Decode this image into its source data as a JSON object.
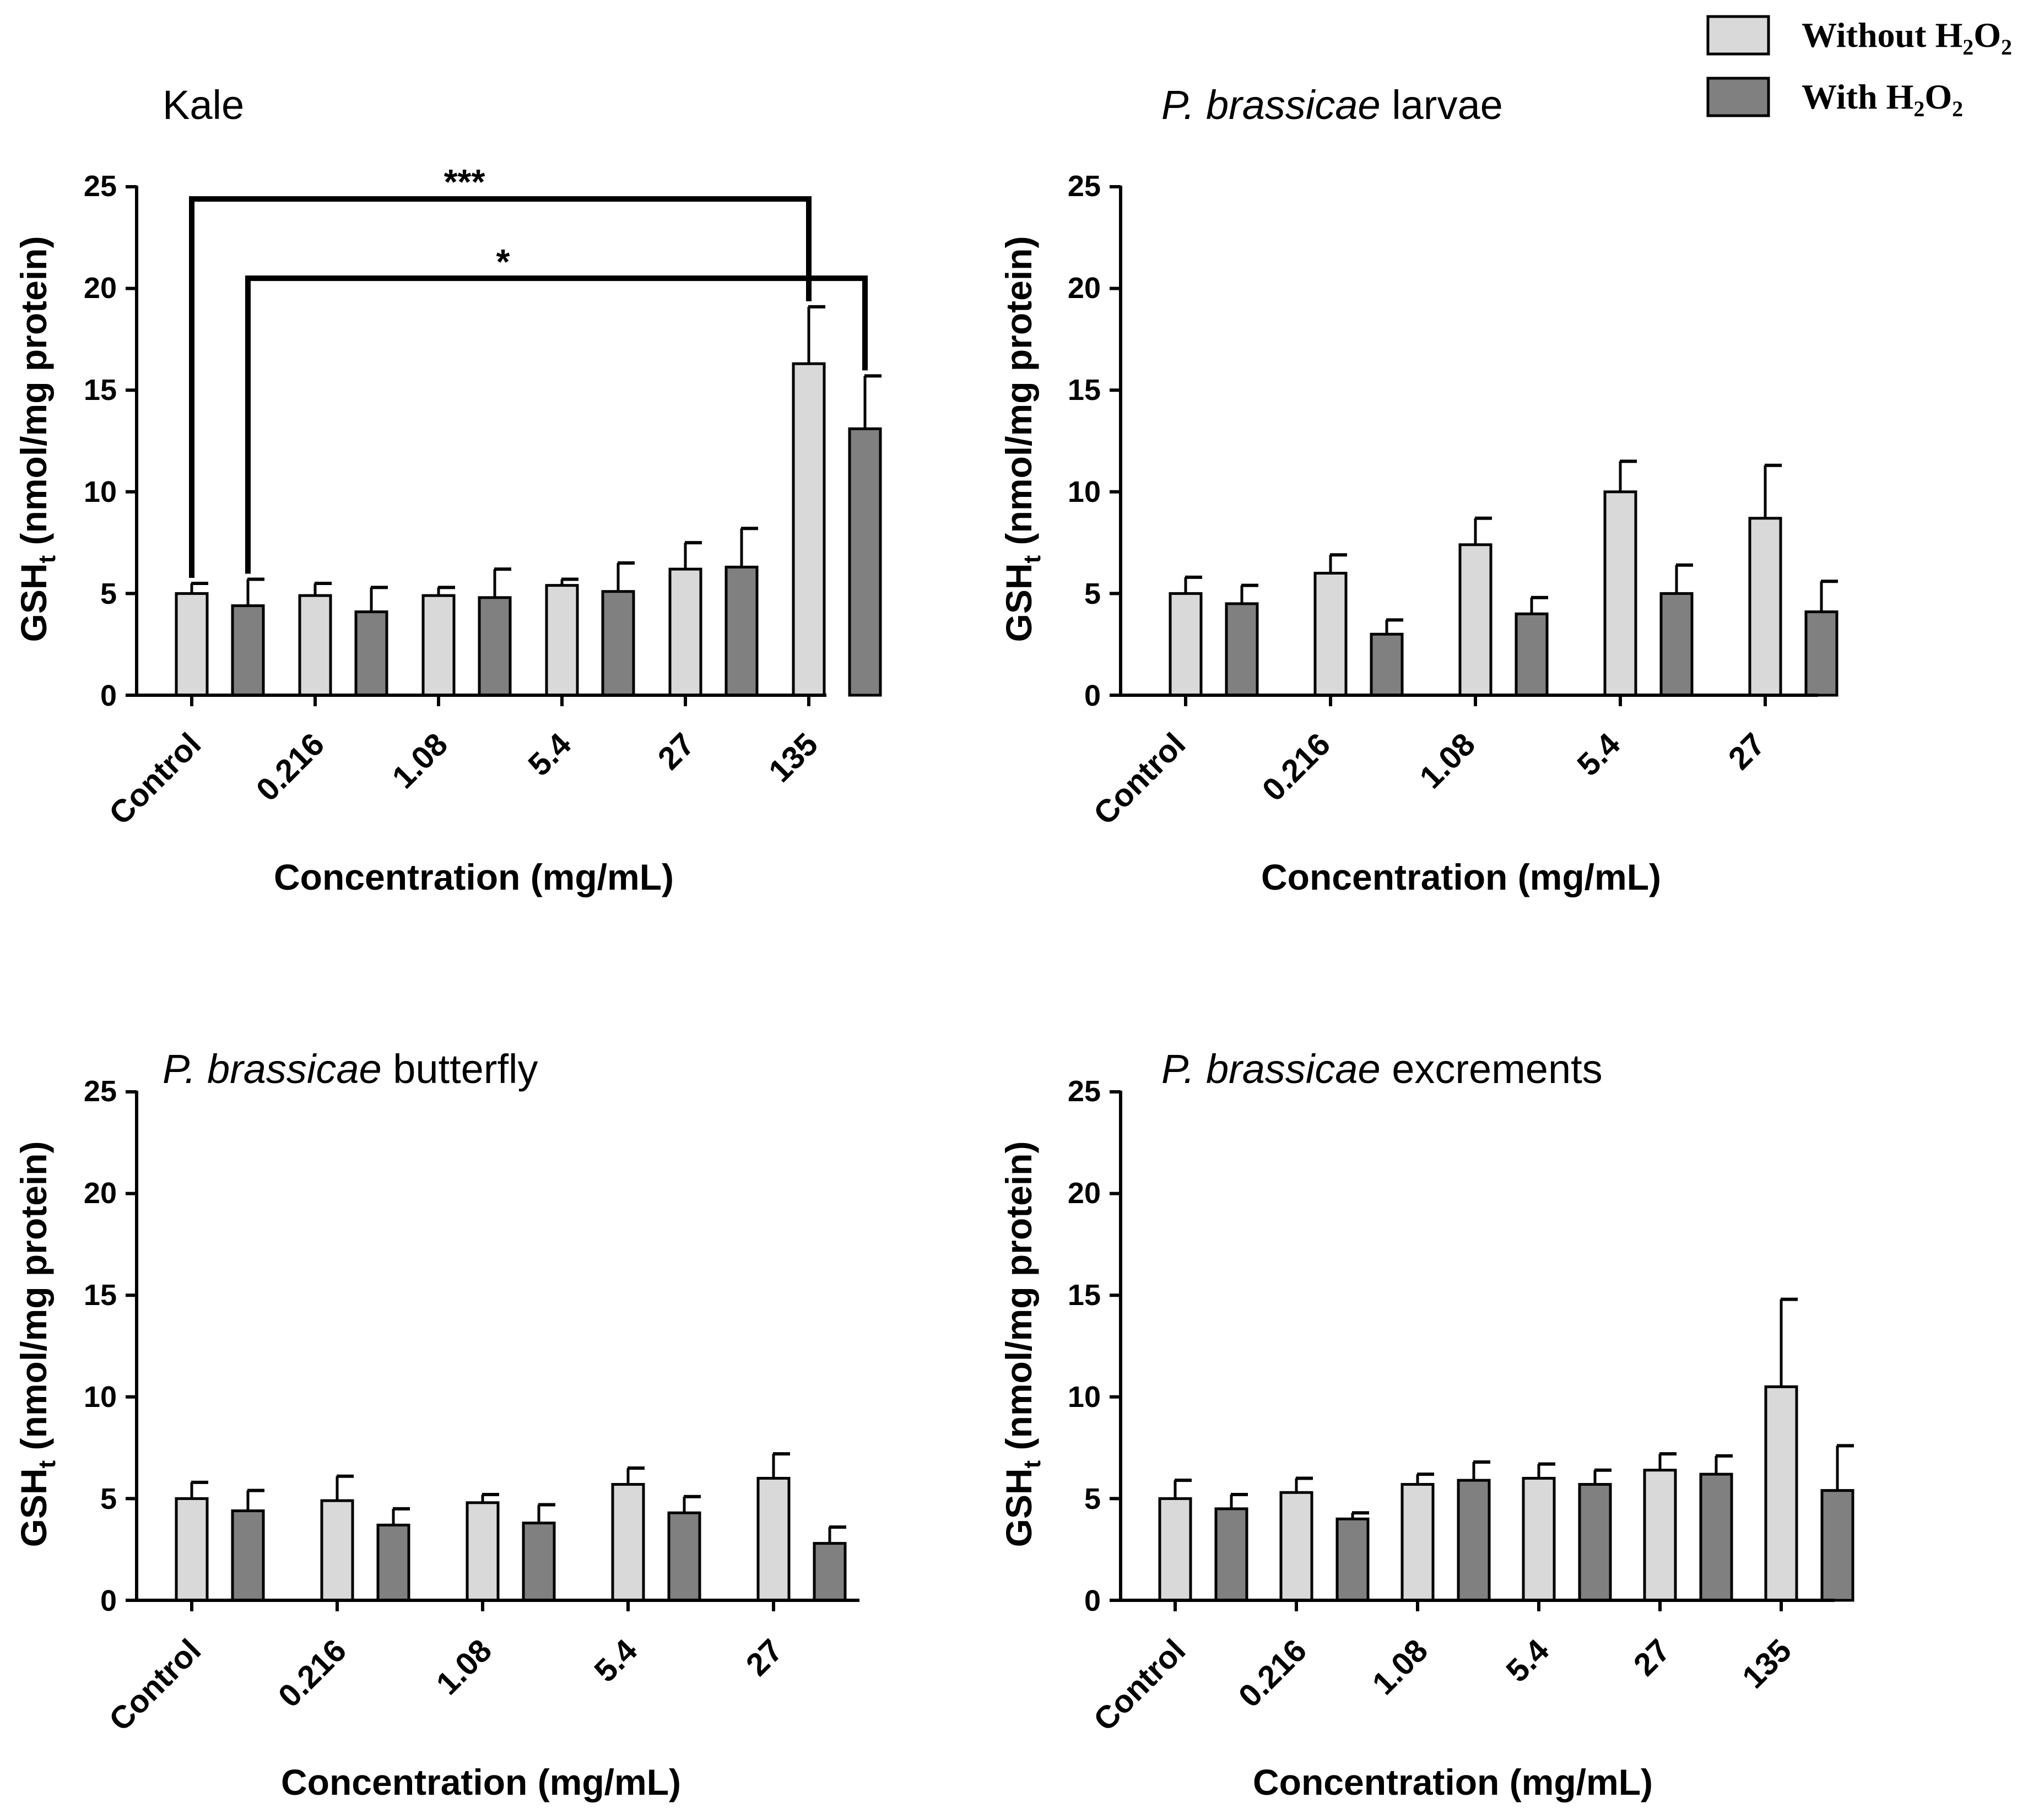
{
  "legend": {
    "entries": [
      {
        "label": "Without H",
        "sub1": "2",
        "mid": "O",
        "sub2": "2",
        "color": "#d9d9d9"
      },
      {
        "label": "With H",
        "sub1": "2",
        "mid": "O",
        "sub2": "2",
        "color": "#808080"
      }
    ]
  },
  "colors": {
    "without": "#d9d9d9",
    "with": "#808080",
    "stroke": "#000000"
  },
  "chart_data": [
    {
      "type": "bar",
      "title": "Kale",
      "title_parts": {
        "italic": "",
        "normal": "Kale"
      },
      "ylabel": "GSH",
      "ylabel_sub": "t",
      "ylabel_rest": " (nmol/mg protein)",
      "xlabel": "Concentration (mg/mL)",
      "ylim": [
        0,
        25
      ],
      "yticks": [
        "0",
        "5",
        "10",
        "15",
        "20",
        "25"
      ],
      "categories": [
        "Control",
        "0.216",
        "1.08",
        "5.4",
        "27",
        "135"
      ],
      "series": [
        {
          "name": "Without H2O2",
          "values": [
            5.0,
            4.9,
            4.9,
            5.4,
            6.2,
            16.3
          ],
          "errors": [
            0.5,
            0.6,
            0.4,
            0.3,
            1.3,
            2.8
          ]
        },
        {
          "name": "With H2O2",
          "values": [
            4.4,
            4.1,
            4.8,
            5.1,
            6.3,
            13.1
          ],
          "errors": [
            1.3,
            1.2,
            1.4,
            1.4,
            1.9,
            2.6
          ]
        }
      ],
      "significance": [
        {
          "label": "***",
          "from_category": "Control",
          "from_series": 0,
          "to_category": "135",
          "to_series": 0,
          "level": 24.4
        },
        {
          "label": "*",
          "from_category": "Control",
          "from_series": 1,
          "to_category": "135",
          "to_series": 1,
          "level": 20.5
        }
      ]
    },
    {
      "type": "bar",
      "title": "P. brassicae larvae",
      "title_parts": {
        "italic": "P. brassicae",
        "normal": " larvae"
      },
      "ylabel": "GSH",
      "ylabel_sub": "t",
      "ylabel_rest": " (nmol/mg protein)",
      "xlabel": "Concentration (mg/mL)",
      "ylim": [
        0,
        25
      ],
      "yticks": [
        "0",
        "5",
        "10",
        "15",
        "20",
        "25"
      ],
      "categories": [
        "Control",
        "0.216",
        "1.08",
        "5.4",
        "27"
      ],
      "series": [
        {
          "name": "Without H2O2",
          "values": [
            5.0,
            6.0,
            7.4,
            10.0,
            8.7
          ],
          "errors": [
            0.8,
            0.9,
            1.3,
            1.5,
            2.6
          ]
        },
        {
          "name": "With H2O2",
          "values": [
            4.5,
            3.0,
            4.0,
            5.0,
            4.1
          ],
          "errors": [
            0.9,
            0.7,
            0.8,
            1.4,
            1.5
          ]
        }
      ],
      "significance": []
    },
    {
      "type": "bar",
      "title": "P. brassicae butterfly",
      "title_parts": {
        "italic": "P. brassicae",
        "normal": " butterfly"
      },
      "ylabel": "GSH",
      "ylabel_sub": "t",
      "ylabel_rest": " (nmol/mg protein)",
      "xlabel": "Concentration (mg/mL)",
      "ylim": [
        0,
        25
      ],
      "yticks": [
        "0",
        "5",
        "10",
        "15",
        "20",
        "25"
      ],
      "categories": [
        "Control",
        "0.216",
        "1.08",
        "5.4",
        "27"
      ],
      "series": [
        {
          "name": "Without H2O2",
          "values": [
            5.0,
            4.9,
            4.8,
            5.7,
            6.0
          ],
          "errors": [
            0.8,
            1.2,
            0.4,
            0.8,
            1.2
          ]
        },
        {
          "name": "With H2O2",
          "values": [
            4.4,
            3.7,
            3.8,
            4.3,
            2.8
          ],
          "errors": [
            1.0,
            0.8,
            0.9,
            0.8,
            0.8
          ]
        }
      ],
      "significance": []
    },
    {
      "type": "bar",
      "title": "P. brassicae excrements",
      "title_parts": {
        "italic": "P. brassicae",
        "normal": " excrements"
      },
      "ylabel": "GSH",
      "ylabel_sub": "t",
      "ylabel_rest": " (nmol/mg protein)",
      "xlabel": "Concentration (mg/mL)",
      "ylim": [
        0,
        25
      ],
      "yticks": [
        "0",
        "5",
        "10",
        "15",
        "20",
        "25"
      ],
      "categories": [
        "Control",
        "0.216",
        "1.08",
        "5.4",
        "27",
        "135"
      ],
      "series": [
        {
          "name": "Without H2O2",
          "values": [
            5.0,
            5.3,
            5.7,
            6.0,
            6.4,
            10.5
          ],
          "errors": [
            0.9,
            0.7,
            0.5,
            0.7,
            0.8,
            4.3
          ]
        },
        {
          "name": "With H2O2",
          "values": [
            4.5,
            4.0,
            5.9,
            5.7,
            6.2,
            5.4
          ],
          "errors": [
            0.7,
            0.3,
            0.9,
            0.7,
            0.9,
            2.2
          ]
        }
      ],
      "significance": []
    }
  ]
}
